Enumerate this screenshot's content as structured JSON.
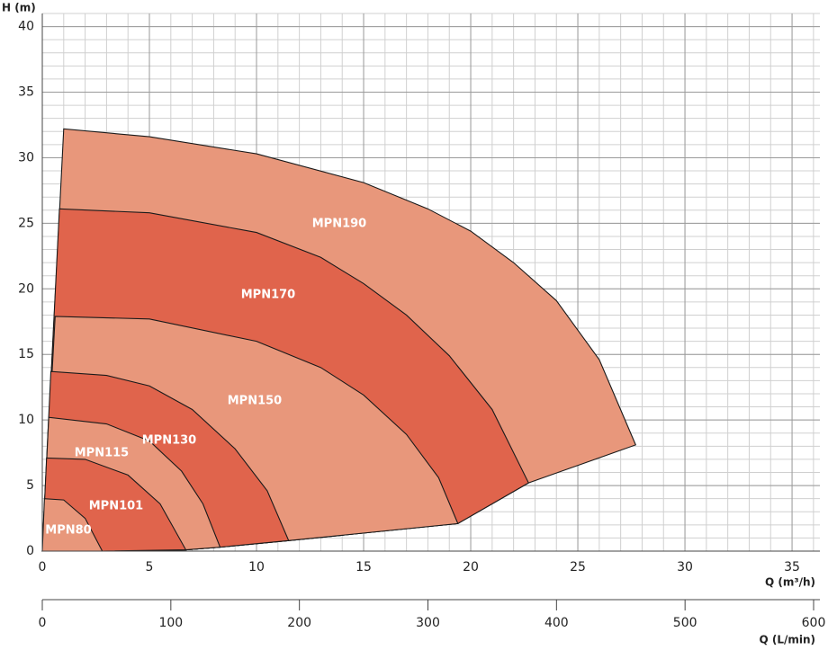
{
  "chart_data": {
    "type": "area-region",
    "ylabel": "H (m)",
    "xlabel": "Q (m³/h)",
    "x2label": "Q (L/min)",
    "xlim": [
      0,
      36.3
    ],
    "xticks": [
      0,
      5,
      10,
      15,
      20,
      25,
      30,
      35
    ],
    "ylim": [
      0,
      41
    ],
    "yticks": [
      0,
      5,
      10,
      15,
      20,
      25,
      30,
      35,
      40
    ],
    "x2lim": [
      0,
      605
    ],
    "x2ticks": [
      0,
      100,
      200,
      300,
      400,
      500,
      600
    ],
    "grid": true,
    "series": [
      {
        "name": "MPN80",
        "color": "#e8977b",
        "x": [
          0,
          0.1,
          1,
          2,
          2.8,
          0
        ],
        "values": [
          0,
          4.0,
          3.9,
          2.5,
          0,
          0
        ]
      },
      {
        "name": "MPN101",
        "color": "#e0644c",
        "x": [
          0,
          0.2,
          2,
          4,
          5.5,
          6.7,
          2.8,
          0
        ],
        "values": [
          0,
          7.1,
          7.0,
          5.8,
          3.6,
          0.1,
          0,
          0
        ]
      },
      {
        "name": "MPN115",
        "color": "#e8977b",
        "x": [
          0,
          0.3,
          3,
          5,
          6.5,
          7.5,
          8.3,
          6.7,
          2.8,
          0
        ],
        "values": [
          0,
          10.2,
          9.7,
          8.4,
          6.1,
          3.6,
          0.3,
          0.1,
          0,
          0
        ]
      },
      {
        "name": "MPN130",
        "color": "#e0644c",
        "x": [
          0,
          0.4,
          3,
          5,
          7,
          9,
          10.5,
          11.5,
          8.3,
          6.7,
          2.8,
          0
        ],
        "values": [
          0,
          13.7,
          13.4,
          12.6,
          10.8,
          7.8,
          4.6,
          0.8,
          0.3,
          0.1,
          0,
          0
        ]
      },
      {
        "name": "MPN150",
        "color": "#e8977b",
        "x": [
          0,
          0.6,
          5,
          10,
          13,
          15,
          17,
          18.5,
          19.4,
          11.5,
          8.3,
          6.7,
          2.8,
          0
        ],
        "values": [
          0,
          17.9,
          17.7,
          16.0,
          14.0,
          11.9,
          8.9,
          5.6,
          2.1,
          0.8,
          0.3,
          0.1,
          0,
          0
        ]
      },
      {
        "name": "MPN170",
        "color": "#e0644c",
        "x": [
          0,
          0.8,
          5,
          10,
          13,
          15,
          17,
          19,
          21,
          22.7,
          19.4,
          11.5,
          8.3,
          6.7,
          2.8,
          0
        ],
        "values": [
          0,
          26.1,
          25.8,
          24.3,
          22.4,
          20.4,
          18.0,
          14.9,
          10.8,
          5.2,
          2.1,
          0.8,
          0.3,
          0.1,
          0,
          0
        ]
      },
      {
        "name": "MPN190",
        "color": "#e8977b",
        "x": [
          0,
          1.0,
          5,
          10,
          15,
          18,
          20,
          22,
          24,
          26,
          27.7,
          22.7,
          19.4,
          11.5,
          8.3,
          6.7,
          2.8,
          0
        ],
        "values": [
          0,
          32.2,
          31.6,
          30.3,
          28.1,
          26.1,
          24.4,
          22.0,
          19.1,
          14.6,
          8.1,
          5.2,
          2.1,
          0.8,
          0.3,
          0.1,
          0,
          0
        ]
      }
    ]
  }
}
